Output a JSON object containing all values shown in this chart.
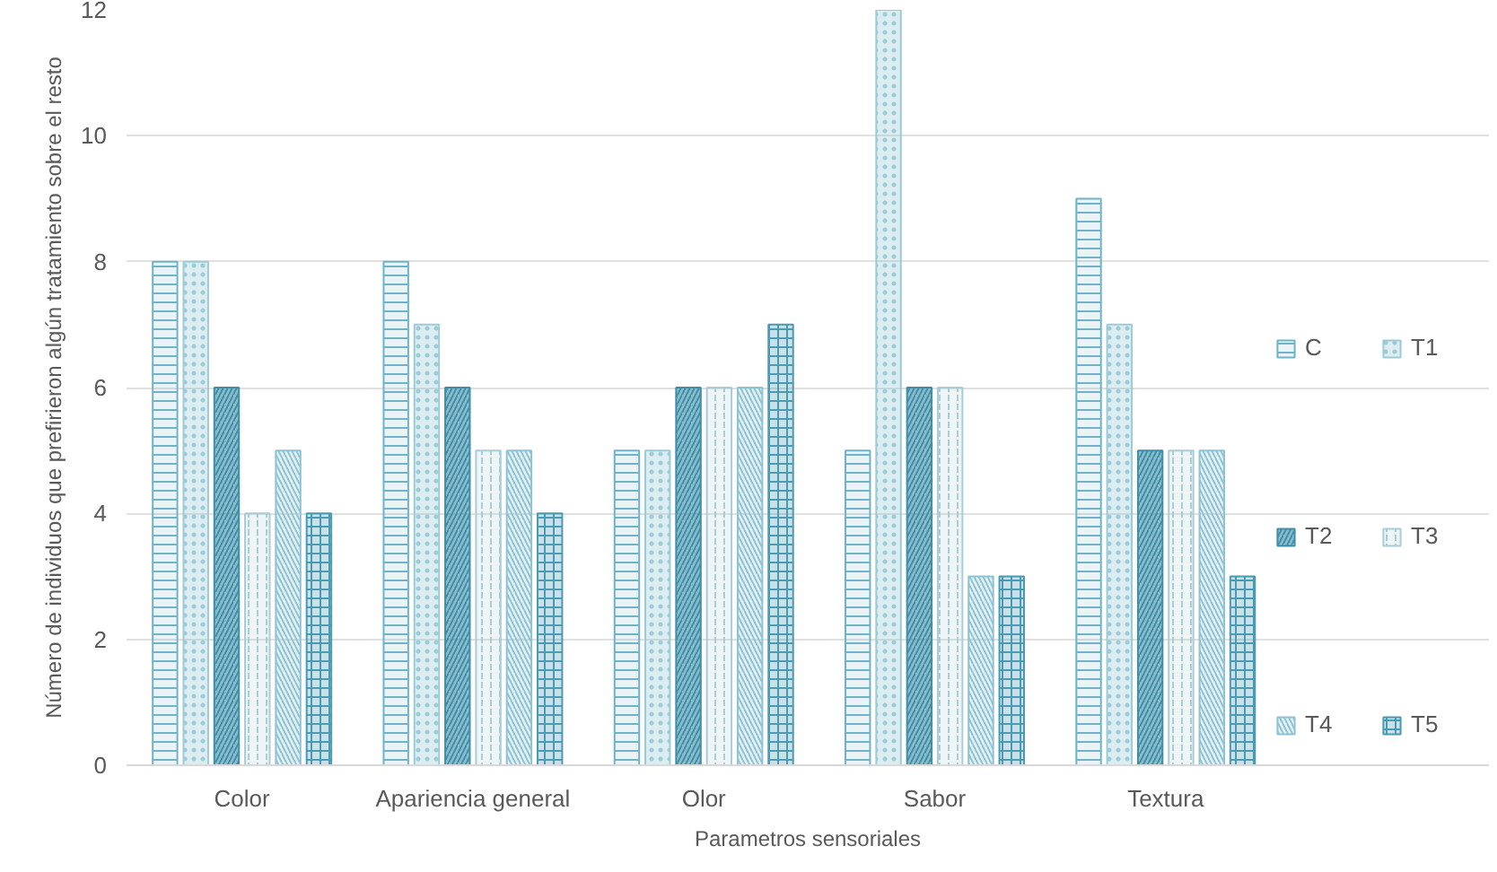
{
  "chart_data": {
    "type": "bar",
    "xlabel": "Parametros sensoriales",
    "ylabel": "Número de individuos que prefirieron algún tratamiento sobre el resto",
    "categories": [
      "Color",
      "Apariencia general",
      "Olor",
      "Sabor",
      "Textura"
    ],
    "series": [
      {
        "name": "C",
        "color": "#6fb3c9",
        "values": [
          8,
          8,
          5,
          5,
          9
        ]
      },
      {
        "name": "T1",
        "color": "#9ccbd8",
        "values": [
          8,
          7,
          5,
          12,
          7
        ]
      },
      {
        "name": "T2",
        "color": "#3f8fa8",
        "values": [
          6,
          6,
          6,
          6,
          5
        ]
      },
      {
        "name": "T3",
        "color": "#a9ccd6",
        "values": [
          4,
          5,
          6,
          6,
          5
        ]
      },
      {
        "name": "T4",
        "color": "#8ec3d3",
        "values": [
          5,
          5,
          6,
          3,
          5
        ]
      },
      {
        "name": "T5",
        "color": "#4a9ab3",
        "values": [
          4,
          4,
          7,
          3,
          3
        ]
      }
    ],
    "ylim": [
      0,
      12
    ],
    "yticks": [
      0,
      2,
      4,
      6,
      8,
      10,
      12
    ],
    "grid": "y",
    "legend": "right"
  }
}
